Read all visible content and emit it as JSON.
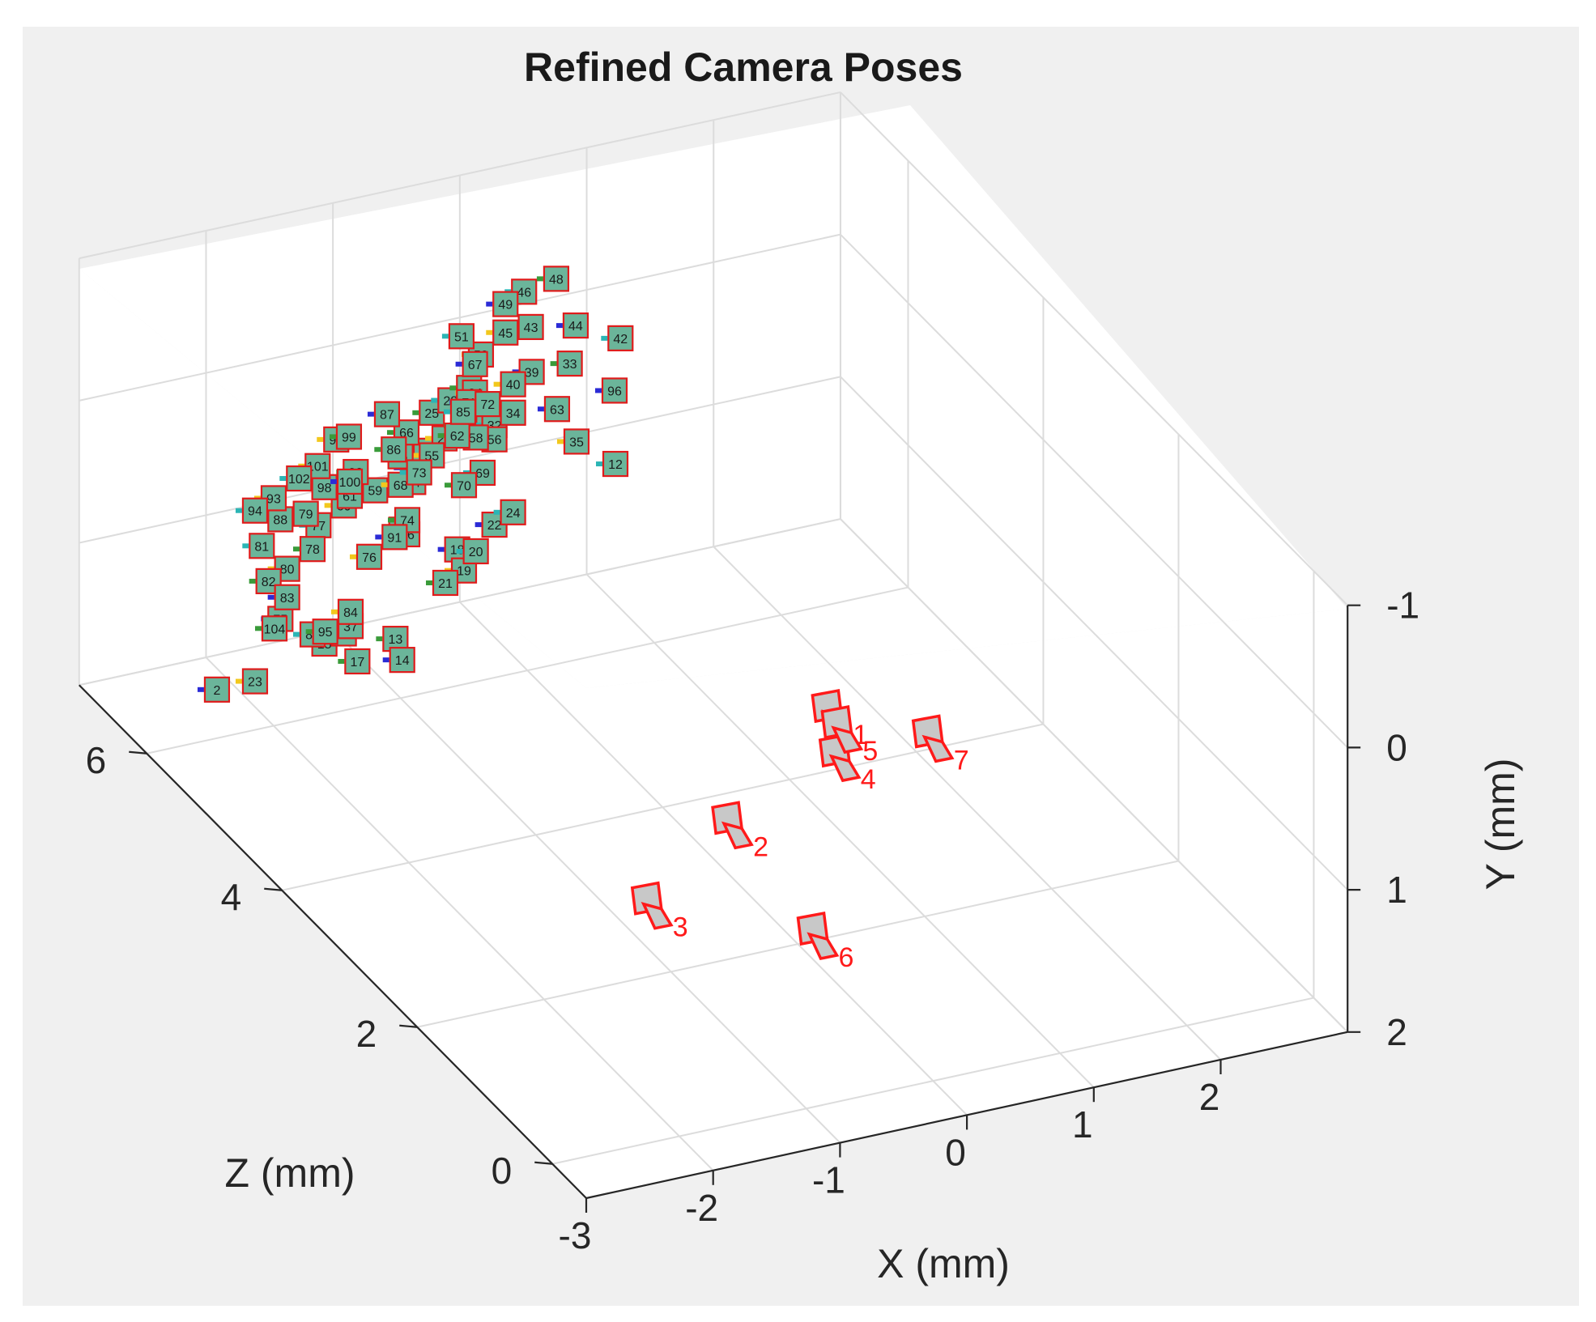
{
  "colors": {
    "figure_bg": "#f0f0f0",
    "axes_bg": "#ffffff",
    "grid": "#dcdcdc",
    "axis": "#262626",
    "tag_fill": "#6bb59a",
    "tag_border": "#e01b1b",
    "camera": "#ff1a1a",
    "camera_face": "#c8c8c8"
  },
  "chart_data": {
    "type": "scatter",
    "title": "Refined Camera Poses",
    "xlabel": "X (mm)",
    "ylabel": "Y (mm)",
    "zlabel": "Z (mm)",
    "xlim": [
      -3,
      3
    ],
    "ylim": [
      -1,
      2
    ],
    "zlim": [
      -0.5,
      7
    ],
    "x_ticks": [
      "-3",
      "-2",
      "-1",
      "0",
      "1",
      "2"
    ],
    "y_ticks": [
      "-1",
      "0",
      "1",
      "2"
    ],
    "z_ticks": [
      "0",
      "2",
      "4",
      "6"
    ],
    "y_axis_direction": "reversed",
    "grid": true,
    "view": "3d",
    "series": [
      {
        "marker": "camera",
        "points": [
          {
            "label": "1",
            "x": 0.15,
            "y": 0.3,
            "z": 1.85
          },
          {
            "label": "2",
            "x": -0.85,
            "y": 0.7,
            "z": 1.45
          },
          {
            "label": "3",
            "x": -1.75,
            "y": 0.85,
            "z": 0.95
          },
          {
            "label": "4",
            "x": 0.05,
            "y": 0.45,
            "z": 1.55
          },
          {
            "label": "5",
            "x": 0.2,
            "y": 0.4,
            "z": 1.8
          },
          {
            "label": "6",
            "x": -0.55,
            "y": 1.2,
            "z": 0.75
          },
          {
            "label": "7",
            "x": 1.05,
            "y": 0.75,
            "z": 2.05
          }
        ]
      },
      {
        "marker": "tag",
        "points": [
          {
            "label": "2",
            "x": -2.5,
            "y": 1.6,
            "z": 5.9
          },
          {
            "label": "3",
            "x": -1.1,
            "y": 0.7,
            "z": 5.8
          },
          {
            "label": "12",
            "x": 0.8,
            "y": 0.8,
            "z": 6.2
          },
          {
            "label": "13",
            "x": -1.2,
            "y": 1.4,
            "z": 5.7
          },
          {
            "label": "14",
            "x": -1.2,
            "y": 1.5,
            "z": 5.6
          },
          {
            "label": "15",
            "x": -1.6,
            "y": 1.5,
            "z": 6.0
          },
          {
            "label": "16",
            "x": -1.5,
            "y": 1.4,
            "z": 5.9
          },
          {
            "label": "17",
            "x": -1.5,
            "y": 1.5,
            "z": 5.7
          },
          {
            "label": "18",
            "x": -0.5,
            "y": 1.1,
            "z": 6.1
          },
          {
            "label": "19",
            "x": -0.5,
            "y": 1.2,
            "z": 6.0
          },
          {
            "label": "20",
            "x": -0.3,
            "y": 1.2,
            "z": 6.2
          },
          {
            "label": "21",
            "x": -0.7,
            "y": 1.2,
            "z": 5.9
          },
          {
            "label": "22",
            "x": -0.1,
            "y": 1.1,
            "z": 6.3
          },
          {
            "label": "23",
            "x": -2.2,
            "y": 1.6,
            "z": 5.9
          },
          {
            "label": "24",
            "x": 0.1,
            "y": 1.1,
            "z": 6.4
          },
          {
            "label": "25",
            "x": -0.7,
            "y": 0.1,
            "z": 6.1
          },
          {
            "label": "26",
            "x": -0.8,
            "y": 0.3,
            "z": 6.0
          },
          {
            "label": "27",
            "x": -0.6,
            "y": 0.3,
            "z": 6.1
          },
          {
            "label": "28",
            "x": -0.5,
            "y": 0.1,
            "z": 6.2
          },
          {
            "label": "29",
            "x": -0.3,
            "y": 0.1,
            "z": 6.3
          },
          {
            "label": "30",
            "x": -0.9,
            "y": 0.4,
            "z": 6.0
          },
          {
            "label": "31",
            "x": -0.2,
            "y": 0.3,
            "z": 6.2
          },
          {
            "label": "32",
            "x": -0.1,
            "y": 0.4,
            "z": 6.3
          },
          {
            "label": "33",
            "x": 0.6,
            "y": 0.2,
            "z": 6.5
          },
          {
            "label": "34",
            "x": 0.1,
            "y": 0.4,
            "z": 6.4
          },
          {
            "label": "35",
            "x": 0.6,
            "y": 0.7,
            "z": 6.4
          },
          {
            "label": "36",
            "x": -1.0,
            "y": 0.8,
            "z": 5.9
          },
          {
            "label": "37",
            "x": -1.5,
            "y": 1.3,
            "z": 5.8
          },
          {
            "label": "39",
            "x": 0.3,
            "y": 0.2,
            "z": 6.5
          },
          {
            "label": "40",
            "x": 0.1,
            "y": 0.2,
            "z": 6.4
          },
          {
            "label": "42",
            "x": 1.0,
            "y": 0.1,
            "z": 6.5
          },
          {
            "label": "43",
            "x": 0.4,
            "y": 0.0,
            "z": 6.7
          },
          {
            "label": "44",
            "x": 0.7,
            "y": 0.0,
            "z": 6.6
          },
          {
            "label": "45",
            "x": 0.2,
            "y": 0.0,
            "z": 6.7
          },
          {
            "label": "46",
            "x": 0.4,
            "y": -0.2,
            "z": 6.8
          },
          {
            "label": "48",
            "x": 0.6,
            "y": -0.3,
            "z": 6.7
          },
          {
            "label": "49",
            "x": 0.2,
            "y": -0.2,
            "z": 6.7
          },
          {
            "label": "50",
            "x": -0.1,
            "y": 0.0,
            "z": 6.5
          },
          {
            "label": "51",
            "x": -0.2,
            "y": -0.1,
            "z": 6.6
          },
          {
            "label": "52",
            "x": -0.4,
            "y": 0.3,
            "z": 6.2
          },
          {
            "label": "54",
            "x": -0.9,
            "y": 0.5,
            "z": 6.0
          },
          {
            "label": "55",
            "x": -0.7,
            "y": 0.4,
            "z": 6.1
          },
          {
            "label": "56",
            "x": -0.1,
            "y": 0.5,
            "z": 6.3
          },
          {
            "label": "58",
            "x": -0.3,
            "y": 0.4,
            "z": 6.2
          },
          {
            "label": "59",
            "x": -1.2,
            "y": 0.5,
            "z": 6.0
          },
          {
            "label": "60",
            "x": -1.5,
            "y": 0.5,
            "z": 5.9
          },
          {
            "label": "61",
            "x": -1.4,
            "y": 0.5,
            "z": 6.0
          },
          {
            "label": "62",
            "x": -0.5,
            "y": 0.3,
            "z": 6.1
          },
          {
            "label": "63",
            "x": 0.5,
            "y": 0.5,
            "z": 6.5
          },
          {
            "label": "64",
            "x": -0.2,
            "y": 0.2,
            "z": 6.4
          },
          {
            "label": "65",
            "x": -1.0,
            "y": 0.3,
            "z": 6.0
          },
          {
            "label": "66",
            "x": -0.9,
            "y": 0.2,
            "z": 6.1
          },
          {
            "label": "67",
            "x": -0.2,
            "y": 0.0,
            "z": 6.4
          },
          {
            "label": "68",
            "x": -1.0,
            "y": 0.5,
            "z": 6.0
          },
          {
            "label": "69",
            "x": -0.3,
            "y": 0.6,
            "z": 6.1
          },
          {
            "label": "70",
            "x": -0.5,
            "y": 0.6,
            "z": 6.0
          },
          {
            "label": "71",
            "x": -0.3,
            "y": 0.2,
            "z": 6.3
          },
          {
            "label": "72",
            "x": -0.1,
            "y": 0.3,
            "z": 6.4
          },
          {
            "label": "73",
            "x": -0.8,
            "y": 0.5,
            "z": 6.1
          },
          {
            "label": "74",
            "x": -1.0,
            "y": 0.7,
            "z": 5.9
          },
          {
            "label": "75",
            "x": -2.0,
            "y": 1.2,
            "z": 5.9
          },
          {
            "label": "76",
            "x": -1.3,
            "y": 0.9,
            "z": 5.9
          },
          {
            "label": "77",
            "x": -1.7,
            "y": 0.6,
            "z": 5.9
          },
          {
            "label": "78",
            "x": -1.8,
            "y": 0.7,
            "z": 5.8
          },
          {
            "label": "79",
            "x": -1.8,
            "y": 0.5,
            "z": 5.9
          },
          {
            "label": "80",
            "x": -2.0,
            "y": 0.8,
            "z": 5.8
          },
          {
            "label": "81",
            "x": -2.2,
            "y": 0.6,
            "z": 5.8
          },
          {
            "label": "82",
            "x": -2.2,
            "y": 0.8,
            "z": 5.7
          },
          {
            "label": "83",
            "x": -2.0,
            "y": 1.0,
            "z": 5.8
          },
          {
            "label": "84",
            "x": -1.5,
            "y": 1.2,
            "z": 5.8
          },
          {
            "label": "85",
            "x": -0.4,
            "y": 0.2,
            "z": 6.2
          },
          {
            "label": "86",
            "x": -1.0,
            "y": 0.3,
            "z": 6.1
          },
          {
            "label": "87",
            "x": -1.0,
            "y": 0.1,
            "z": 6.2
          },
          {
            "label": "88",
            "x": -2.0,
            "y": 0.5,
            "z": 5.9
          },
          {
            "label": "89",
            "x": -1.8,
            "y": 1.3,
            "z": 5.8
          },
          {
            "label": "90",
            "x": -1.3,
            "y": 0.4,
            "z": 6.1
          },
          {
            "label": "91",
            "x": -1.1,
            "y": 0.8,
            "z": 5.9
          },
          {
            "label": "93",
            "x": -2.0,
            "y": 0.4,
            "z": 6.0
          },
          {
            "label": "94",
            "x": -2.2,
            "y": 0.4,
            "z": 5.9
          },
          {
            "label": "95",
            "x": -1.7,
            "y": 1.3,
            "z": 5.8
          },
          {
            "label": "96",
            "x": 0.9,
            "y": 0.4,
            "z": 6.4
          },
          {
            "label": "97",
            "x": -1.4,
            "y": 0.2,
            "z": 6.2
          },
          {
            "label": "98",
            "x": -1.6,
            "y": 0.4,
            "z": 6.0
          },
          {
            "label": "99",
            "x": -1.3,
            "y": 0.2,
            "z": 6.2
          },
          {
            "label": "100",
            "x": -1.4,
            "y": 0.4,
            "z": 6.0
          },
          {
            "label": "101",
            "x": -1.6,
            "y": 0.3,
            "z": 6.1
          },
          {
            "label": "102",
            "x": -1.8,
            "y": 0.3,
            "z": 6.0
          },
          {
            "label": "104",
            "x": -2.1,
            "y": 1.2,
            "z": 5.8
          }
        ]
      }
    ]
  }
}
